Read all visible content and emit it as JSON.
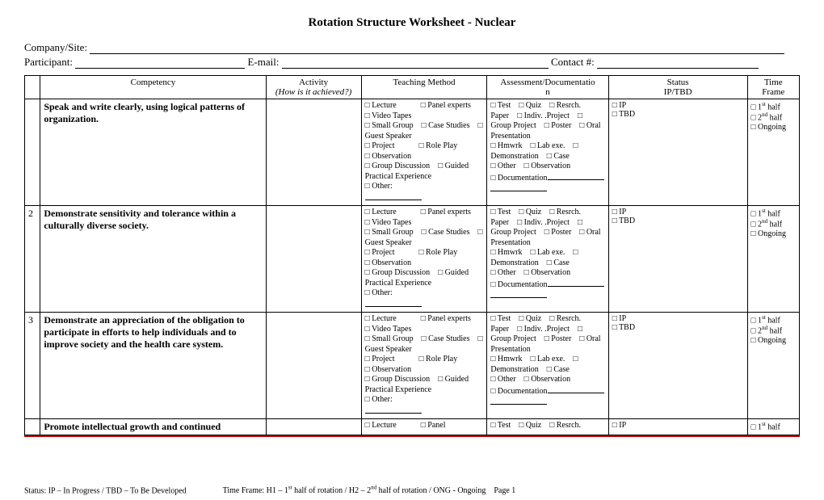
{
  "title": "Rotation Structure Worksheet - Nuclear",
  "header": {
    "company_label": "Company/Site:",
    "participant_label": "Participant:",
    "email_label": "E-mail:",
    "contact_label": "Contact #:"
  },
  "columns": {
    "competency": "Competency",
    "activity_line1": "Activity",
    "activity_line2": "(How is it achieved?)",
    "teaching": "Teaching Method",
    "assessment_line1": "Assessment/Documentatio",
    "assessment_line2": "n",
    "status_line1": "Status",
    "status_line2": "IP/TBD",
    "time_line1": "Time",
    "time_line2": "Frame"
  },
  "teaching_method_text": "□ Lecture   □ Panel experts □ Video Tapes\n□ Small Group □ Case Studies □ Guest Speaker\n□ Project   □ Role Play\n□ Observation\n□ Group Discussion □ Guided Practical Experience\n□ Other:",
  "assessment_text": "□ Test □ Quiz □ Resrch. Paper □ Indiv. .Project □ Group Project □ Poster □ Oral Presentation\n□ Hmwrk □ Lab exe. □ Demonstration □ Case\n□ Other □ Observation\n□ Documentation",
  "status_text": "□ IP\n□ TBD",
  "time_text_html": "□ 1<span class=\"sup\">st</span> half<br>□ 2<span class=\"sup\">nd</span> half<br>□ Ongoing",
  "rows": [
    {
      "num": "",
      "competency": "Speak and write clearly, using logical patterns of organization."
    },
    {
      "num": "2",
      "competency": "Demonstrate sensitivity and tolerance within a culturally diverse society."
    },
    {
      "num": "3",
      "competency": "Demonstrate an appreciation of the obligation to participate in efforts to help individuals and to\nimprove society and the health care system."
    }
  ],
  "partial_row": {
    "num": "",
    "competency": "Promote intellectual growth and continued",
    "teaching_partial": "□ Lecture   □ Panel",
    "assessment_partial": "□ Test □ Quiz □ Resrch.",
    "status_partial": "□ IP",
    "time_partial_html": "□ 1<span class=\"sup\">st</span> half"
  },
  "footer": {
    "status_legend": "Status: IP – In Progress / TBD – To Be Developed",
    "time_legend_html": "Time Frame: H1 – 1<span class=\"sup\">st</span> half of rotation / H2 – 2<span class=\"sup\">nd</span> half of rotation / ONG - Ongoing Page 1"
  },
  "colors": {
    "rule": "#c00000",
    "text": "#000000",
    "background": "#ffffff"
  }
}
